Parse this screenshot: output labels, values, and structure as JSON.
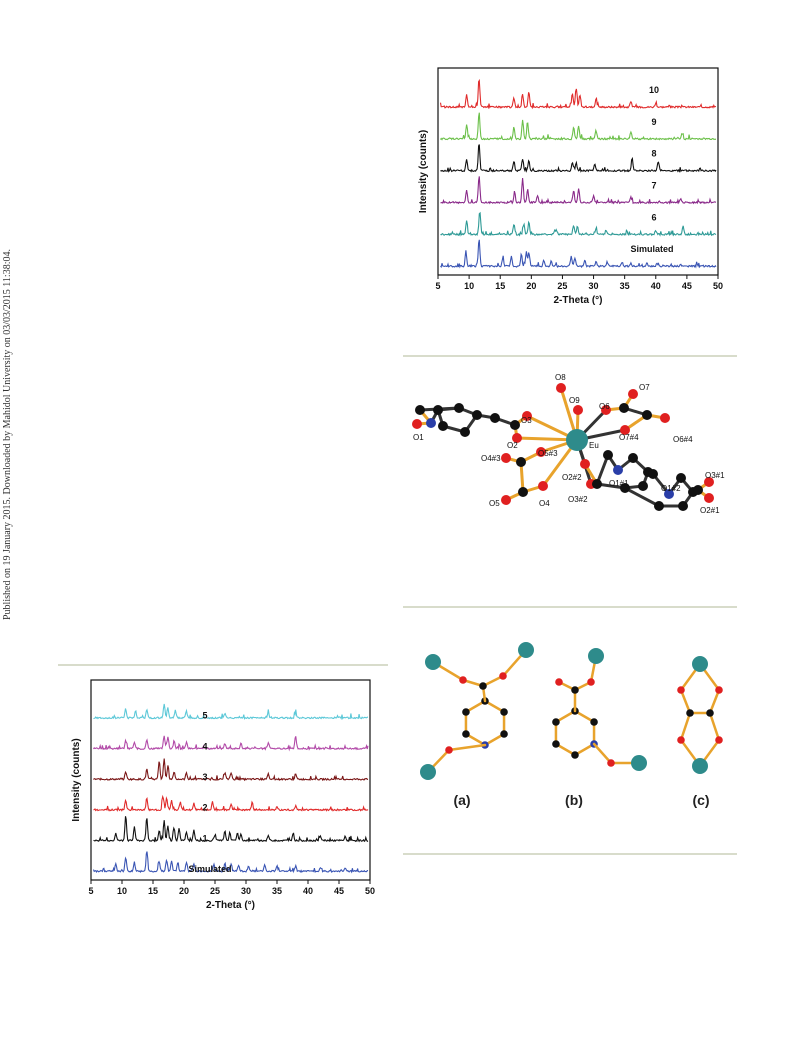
{
  "side_note": "Published on 19 January 2015. Downloaded by Mahidol University on 03/03/2015 11:38:04.",
  "charts": [
    {
      "type": "line",
      "xlabel": "2-Theta (°)",
      "ylabel": "Intensity (counts)",
      "xlim": [
        5,
        50
      ],
      "xticks": [
        5,
        10,
        15,
        20,
        25,
        30,
        35,
        40,
        45,
        50
      ],
      "series": [
        {
          "name": "Simulated",
          "color": "#3a55b4"
        },
        {
          "name": "6",
          "color": "#2e9a96"
        },
        {
          "name": "7",
          "color": "#8a2a8a"
        },
        {
          "name": "8",
          "color": "#111111"
        },
        {
          "name": "9",
          "color": "#6cc04a"
        },
        {
          "name": "10",
          "color": "#e02b2b"
        }
      ]
    },
    {
      "type": "line",
      "xlabel": "2-Theta (°)",
      "ylabel": "Intensity (counts)",
      "xlim": [
        5,
        50
      ],
      "xticks": [
        5,
        10,
        15,
        20,
        25,
        30,
        35,
        40,
        45,
        50
      ],
      "series": [
        {
          "name": "Simulated",
          "color": "#3a55b4"
        },
        {
          "name": "1",
          "color": "#111111"
        },
        {
          "name": "2",
          "color": "#e02b2b"
        },
        {
          "name": "3",
          "color": "#7a1616"
        },
        {
          "name": "4",
          "color": "#b24aa8"
        },
        {
          "name": "5",
          "color": "#5cc8d8"
        }
      ]
    }
  ],
  "chart_data": [
    {
      "type": "line",
      "xlabel": "2-Theta (°)",
      "ylabel": "Intensity (counts)",
      "xlim": [
        5,
        50
      ],
      "series": [
        {
          "name": "Simulated",
          "x": [
            9.5,
            11.6,
            15.4,
            16.8,
            18.4,
            19.2,
            19.6,
            22.0,
            23.2,
            26.4,
            27.0,
            28.6,
            30.4,
            32.2,
            34.6,
            36.0,
            40.2,
            44.0
          ],
          "y": [
            0.45,
            1.0,
            0.3,
            0.35,
            0.45,
            0.55,
            0.5,
            0.2,
            0.2,
            0.35,
            0.3,
            0.22,
            0.18,
            0.15,
            0.12,
            0.1,
            0.1,
            0.08
          ]
        },
        {
          "name": "6",
          "x": [
            9.6,
            11.7,
            17.2,
            18.8,
            19.6,
            24.0,
            26.8,
            27.4,
            30.4,
            32.0,
            40.0,
            44.4
          ],
          "y": [
            0.5,
            0.85,
            0.35,
            0.4,
            0.45,
            0.2,
            0.35,
            0.3,
            0.2,
            0.15,
            0.15,
            0.3
          ]
        },
        {
          "name": "7",
          "x": [
            9.6,
            11.6,
            17.3,
            18.6,
            19.4,
            21.0,
            26.8,
            27.6,
            30.0,
            36.0,
            44.0
          ],
          "y": [
            0.45,
            1.0,
            0.4,
            0.9,
            0.5,
            0.25,
            0.45,
            0.5,
            0.25,
            0.2,
            0.15
          ]
        },
        {
          "name": "8",
          "x": [
            9.6,
            11.6,
            17.2,
            18.6,
            19.6,
            26.6,
            27.2,
            30.2,
            36.2,
            40.4
          ],
          "y": [
            0.4,
            1.0,
            0.35,
            0.45,
            0.4,
            0.3,
            0.3,
            0.25,
            0.5,
            0.35
          ]
        },
        {
          "name": "9",
          "x": [
            9.6,
            11.6,
            17.2,
            18.6,
            19.4,
            26.8,
            27.6,
            30.4,
            36.0,
            44.2
          ],
          "y": [
            0.55,
            1.0,
            0.45,
            0.7,
            0.6,
            0.45,
            0.5,
            0.3,
            0.25,
            0.2
          ]
        },
        {
          "name": "10",
          "x": [
            9.6,
            11.6,
            17.2,
            18.6,
            19.6,
            26.6,
            27.2,
            27.8,
            30.4,
            36.0,
            40.0
          ],
          "y": [
            0.45,
            1.0,
            0.35,
            0.45,
            0.6,
            0.5,
            0.7,
            0.45,
            0.3,
            0.2,
            0.15
          ]
        }
      ]
    },
    {
      "type": "line",
      "xlabel": "2-Theta (°)",
      "ylabel": "Intensity (counts)",
      "xlim": [
        5,
        50
      ],
      "series": [
        {
          "name": "Simulated",
          "x": [
            9.0,
            10.6,
            12.0,
            14.0,
            16.0,
            17.2,
            18.0,
            19.0,
            20.4,
            21.6,
            24.8,
            26.6,
            27.6,
            28.8,
            30.4,
            33.0,
            35.0,
            38.0,
            42.0,
            46.0
          ],
          "y": [
            0.3,
            0.55,
            0.35,
            0.8,
            0.4,
            0.45,
            0.4,
            0.35,
            0.35,
            0.3,
            0.25,
            0.3,
            0.3,
            0.25,
            0.2,
            0.25,
            0.2,
            0.2,
            0.15,
            0.15
          ]
        },
        {
          "name": "1",
          "x": [
            9.0,
            10.6,
            12.0,
            14.0,
            16.0,
            16.8,
            17.4,
            18.4,
            19.2,
            20.4,
            21.6,
            25.0,
            26.6,
            27.4,
            28.6,
            29.2,
            33.6,
            37.6,
            42.0,
            46.0
          ],
          "y": [
            0.3,
            1.0,
            0.55,
            0.9,
            0.4,
            0.8,
            0.6,
            0.5,
            0.5,
            0.35,
            0.4,
            0.2,
            0.35,
            0.3,
            0.3,
            0.25,
            0.2,
            0.3,
            0.15,
            0.15
          ]
        },
        {
          "name": "2",
          "x": [
            10.6,
            14.0,
            16.6,
            17.2,
            18.0,
            19.4,
            21.6,
            24.6,
            27.6,
            31.0,
            35.0,
            38.0
          ],
          "y": [
            0.4,
            0.45,
            0.55,
            0.45,
            0.35,
            0.3,
            0.25,
            0.3,
            0.2,
            0.3,
            0.15,
            0.15
          ]
        },
        {
          "name": "3",
          "x": [
            10.6,
            14.0,
            16.0,
            16.8,
            17.4,
            18.4,
            20.4,
            26.6,
            27.6,
            33.6,
            38.0
          ],
          "y": [
            0.3,
            0.4,
            0.7,
            0.8,
            0.5,
            0.3,
            0.25,
            0.25,
            0.25,
            0.2,
            0.2
          ]
        },
        {
          "name": "4",
          "x": [
            10.6,
            12.0,
            14.0,
            16.8,
            17.4,
            18.4,
            20.4,
            26.6,
            29.2,
            33.6,
            38.0
          ],
          "y": [
            0.3,
            0.25,
            0.35,
            0.5,
            0.45,
            0.3,
            0.25,
            0.2,
            0.2,
            0.2,
            0.5
          ]
        },
        {
          "name": "5",
          "x": [
            10.6,
            12.2,
            14.0,
            16.8,
            17.4,
            18.6,
            20.4,
            26.6,
            33.6,
            38.0
          ],
          "y": [
            0.35,
            0.25,
            0.3,
            0.55,
            0.4,
            0.3,
            0.25,
            0.2,
            0.2,
            0.2
          ]
        }
      ]
    }
  ],
  "structure": {
    "atom_labels": [
      "O8",
      "O7",
      "O9",
      "O6",
      "O3",
      "O6#4",
      "O1",
      "O2",
      "Eu",
      "O7#4",
      "O4#3",
      "O5#3",
      "O2#2",
      "O3#1",
      "O1#1",
      "O1#2",
      "O5",
      "O4",
      "O3#2",
      "O2#1"
    ]
  },
  "modes": {
    "labels": [
      "(a)",
      "(b)",
      "(c)"
    ]
  }
}
